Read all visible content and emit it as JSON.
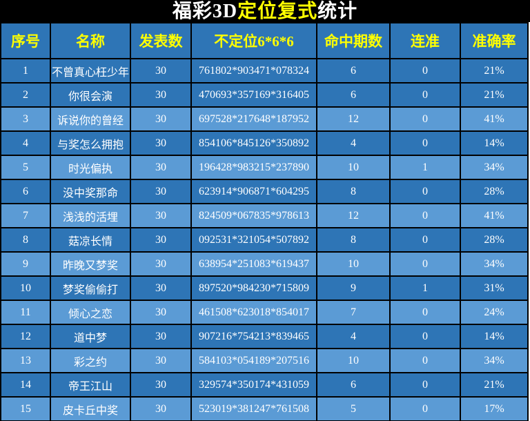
{
  "title": {
    "part1": "福彩3D",
    "part2": "定位复式",
    "part3": "统计"
  },
  "colors": {
    "title_bg": "#000000",
    "title_text": "#FFFFFF",
    "title_accent": "#FFFF00",
    "header_bg": "#2E75B6",
    "header_text": "#FFFF00",
    "row_dark": "#2E75B6",
    "row_light": "#5B9BD5",
    "cell_text": "#FFFFFF",
    "grid_border": "#000000"
  },
  "chart_data": {
    "type": "table",
    "title": "福彩3D定位复式统计",
    "title_parts": [
      "福彩3D",
      "定位复式",
      "统计"
    ],
    "columns": [
      "序号",
      "名称",
      "发表数",
      "不定位6*6*6",
      "命中期数",
      "连准",
      "准确率"
    ],
    "rows": [
      [
        "1",
        "不曾真心枉少年",
        "30",
        "761802*903471*078324",
        "6",
        "0",
        "21%"
      ],
      [
        "2",
        "你很会演",
        "30",
        "470693*357169*316405",
        "6",
        "0",
        "21%"
      ],
      [
        "3",
        "诉说你的曾经",
        "30",
        "697528*217648*187952",
        "12",
        "0",
        "41%"
      ],
      [
        "4",
        "与奖怎么拥抱",
        "30",
        "854106*845126*350892",
        "4",
        "0",
        "14%"
      ],
      [
        "5",
        "时光偏执",
        "30",
        "196428*983215*237890",
        "10",
        "1",
        "34%"
      ],
      [
        "6",
        "没中奖那命",
        "30",
        "623914*906871*604295",
        "8",
        "0",
        "28%"
      ],
      [
        "7",
        "浅浅的活埋",
        "30",
        "824509*067835*978613",
        "12",
        "0",
        "41%"
      ],
      [
        "8",
        "菇凉长情",
        "30",
        "092531*321054*507892",
        "8",
        "0",
        "28%"
      ],
      [
        "9",
        "昨晚又梦奖",
        "30",
        "638954*251083*619437",
        "10",
        "0",
        "34%"
      ],
      [
        "10",
        "梦奖偷偷打",
        "30",
        "897520*984230*715809",
        "9",
        "1",
        "31%"
      ],
      [
        "11",
        "倾心之恋",
        "30",
        "461508*623018*854017",
        "7",
        "0",
        "24%"
      ],
      [
        "12",
        "道中梦",
        "30",
        "907216*754213*839465",
        "4",
        "0",
        "14%"
      ],
      [
        "13",
        "彩之约",
        "30",
        "584103*054189*207516",
        "10",
        "0",
        "34%"
      ],
      [
        "14",
        "帝王江山",
        "30",
        "329574*350174*431059",
        "6",
        "0",
        "21%"
      ],
      [
        "15",
        "皮卡丘中奖",
        "30",
        "523019*381247*761508",
        "5",
        "0",
        "17%"
      ]
    ]
  }
}
